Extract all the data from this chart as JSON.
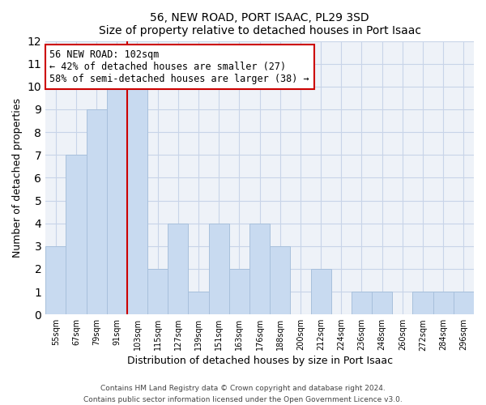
{
  "title": "56, NEW ROAD, PORT ISAAC, PL29 3SD",
  "subtitle": "Size of property relative to detached houses in Port Isaac",
  "xlabel": "Distribution of detached houses by size in Port Isaac",
  "ylabel": "Number of detached properties",
  "bar_labels": [
    "55sqm",
    "67sqm",
    "79sqm",
    "91sqm",
    "103sqm",
    "115sqm",
    "127sqm",
    "139sqm",
    "151sqm",
    "163sqm",
    "176sqm",
    "188sqm",
    "200sqm",
    "212sqm",
    "224sqm",
    "236sqm",
    "248sqm",
    "260sqm",
    "272sqm",
    "284sqm",
    "296sqm"
  ],
  "bar_values": [
    3,
    7,
    9,
    10,
    10,
    2,
    4,
    1,
    4,
    2,
    4,
    3,
    0,
    2,
    0,
    1,
    1,
    0,
    1,
    1,
    1
  ],
  "bar_color": "#c8daf0",
  "bar_edge_color": "#a8c0dc",
  "highlight_line_index": 4,
  "highlight_line_color": "#cc0000",
  "annotation_text_line1": "56 NEW ROAD: 102sqm",
  "annotation_text_line2": "← 42% of detached houses are smaller (27)",
  "annotation_text_line3": "58% of semi-detached houses are larger (38) →",
  "annotation_box_color": "white",
  "annotation_box_edge_color": "#cc0000",
  "ylim": [
    0,
    12
  ],
  "yticks": [
    0,
    1,
    2,
    3,
    4,
    5,
    6,
    7,
    8,
    9,
    10,
    11,
    12
  ],
  "footer_line1": "Contains HM Land Registry data © Crown copyright and database right 2024.",
  "footer_line2": "Contains public sector information licensed under the Open Government Licence v3.0.",
  "grid_color": "#c8d4e8",
  "background_color": "#eef2f8"
}
